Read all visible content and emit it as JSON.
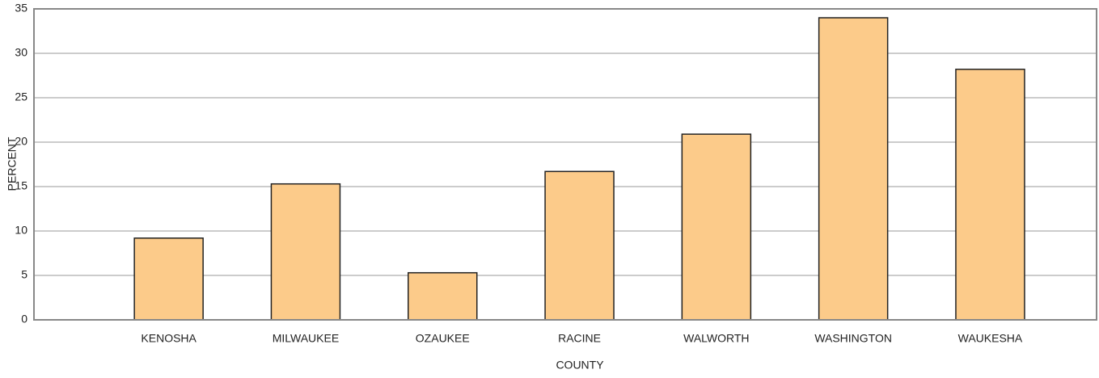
{
  "chart_data": {
    "type": "bar",
    "x_label": "COUNTY",
    "y_label": "PERCENT",
    "categories": [
      "KENOSHA",
      "MILWAUKEE",
      "OZAUKEE",
      "RACINE",
      "WALWORTH",
      "WASHINGTON",
      "WAUKESHA"
    ],
    "values": [
      9.2,
      15.3,
      5.3,
      16.7,
      20.9,
      34.0,
      28.2
    ],
    "color": "#fccb8a",
    "ylim": [
      0,
      35
    ],
    "yticks": [
      0,
      5,
      10,
      15,
      20,
      25,
      30,
      35
    ],
    "grid": true
  }
}
